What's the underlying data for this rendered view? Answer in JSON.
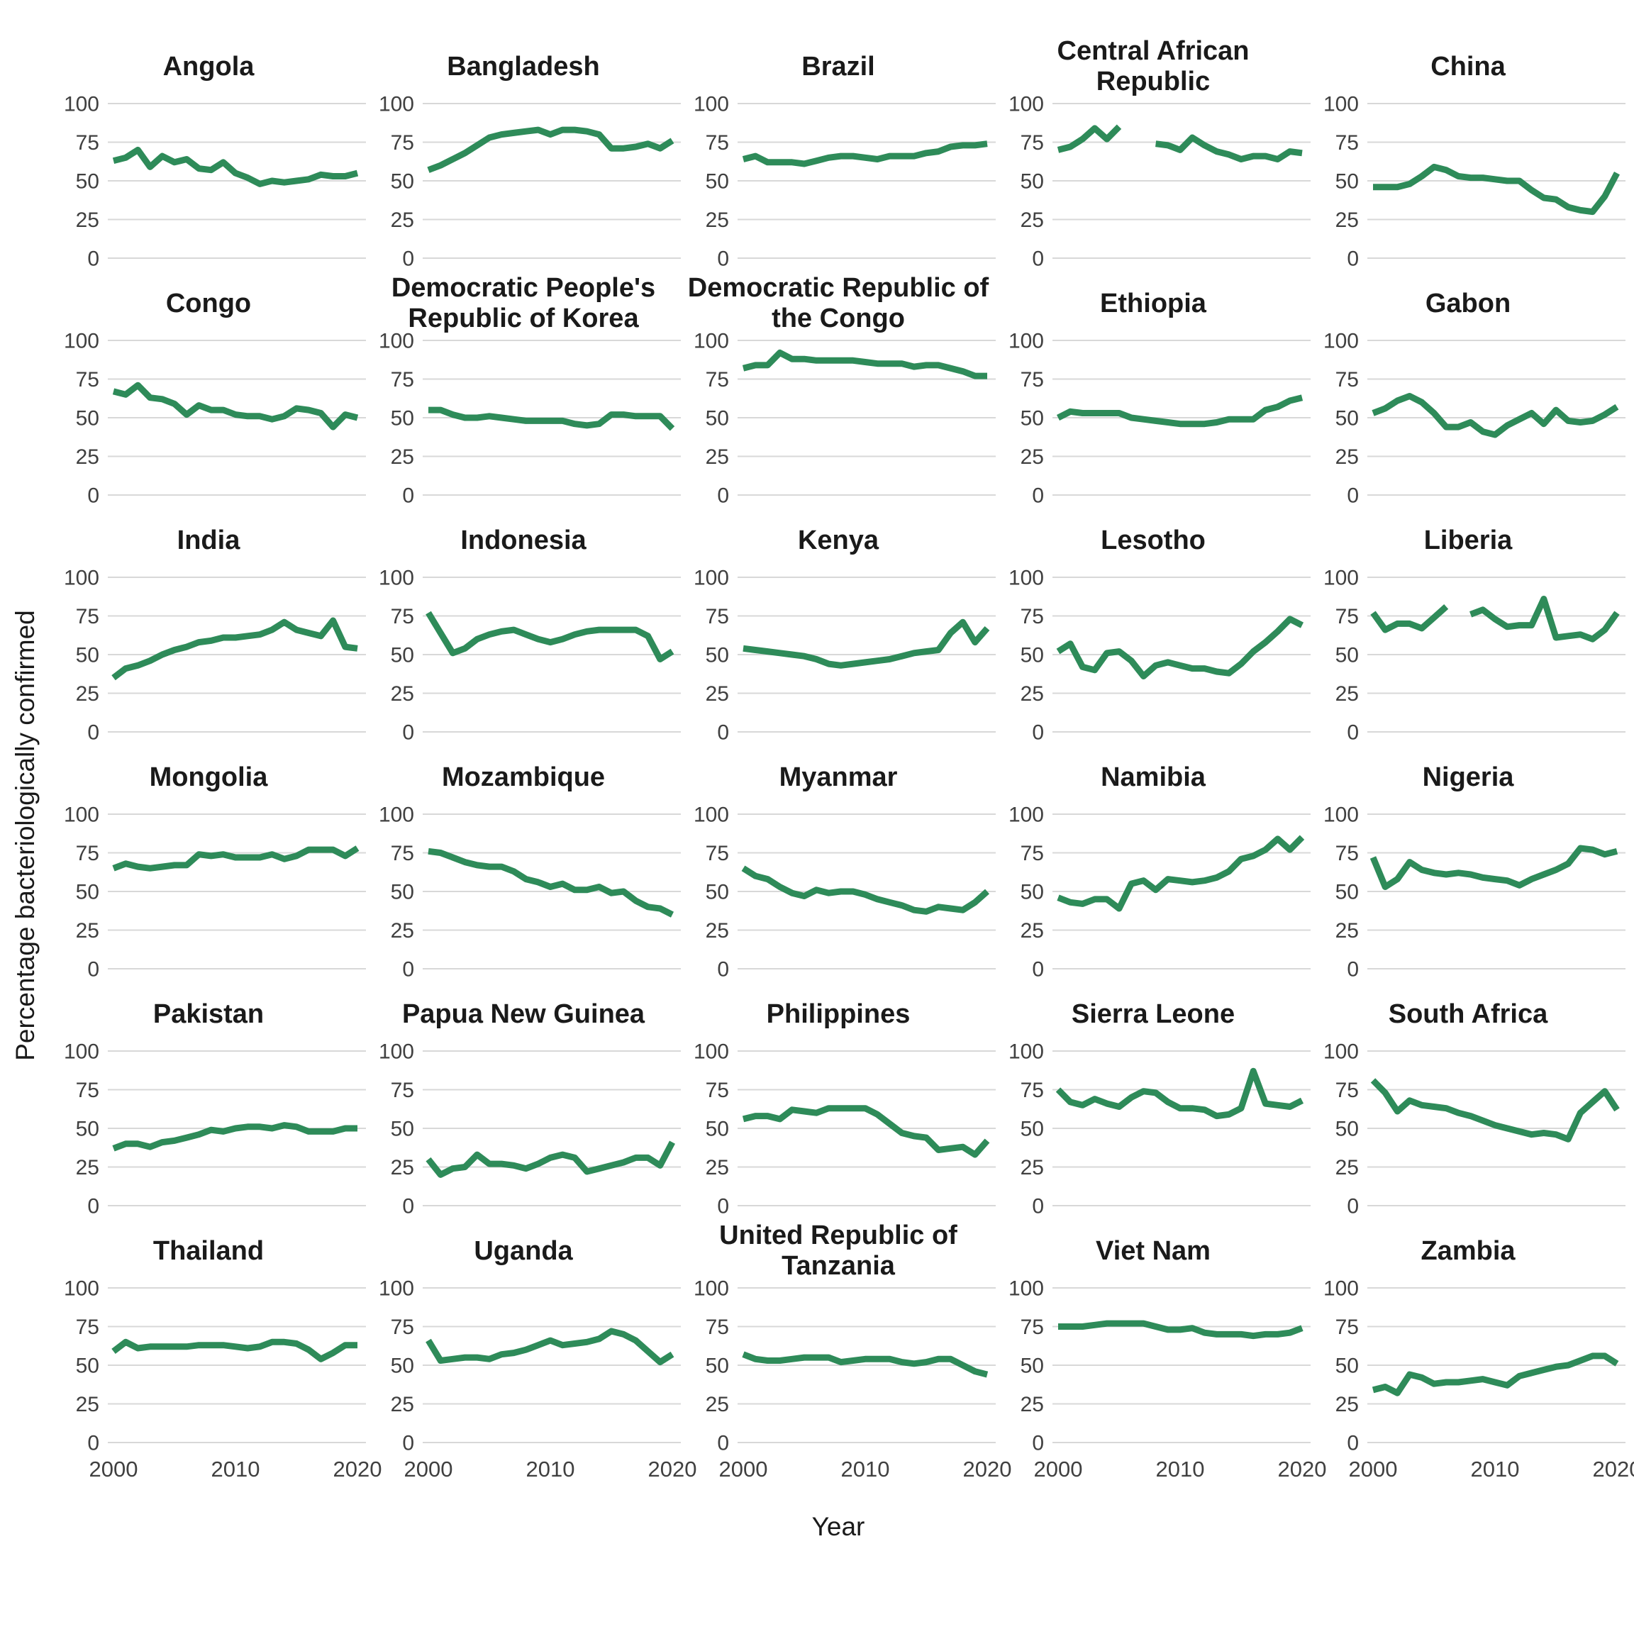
{
  "figure": {
    "background": "#ffffff",
    "description": "Small-multiples line chart, 5 columns x 6 rows, one panel per country"
  },
  "chart_data": {
    "type": "line",
    "title": "",
    "xlabel": "Year",
    "ylabel": "Percentage bacteriologically confirmed",
    "x_start": 2000,
    "x_end": 2020,
    "x_ticks": [
      2000,
      2010,
      2020
    ],
    "y_ticks": [
      0,
      25,
      50,
      75,
      100
    ],
    "ylim": [
      0,
      100
    ],
    "grid": "horizontal gridlines only, shown on bottom-row x labels only",
    "legend_position": "none",
    "facets_per_row": 5,
    "line_color": "#2e8b59",
    "gridline_color": "#d8d8d8",
    "tick_text_color": "#404040",
    "title_text_color": "#1a1a1a",
    "series": [
      {
        "name": "Angola",
        "values": [
          63,
          65,
          70,
          59,
          66,
          62,
          64,
          58,
          57,
          62,
          55,
          52,
          48,
          50,
          49,
          50,
          51,
          54,
          53,
          53,
          55
        ]
      },
      {
        "name": "Bangladesh",
        "values": [
          57,
          60,
          64,
          68,
          73,
          78,
          80,
          81,
          82,
          83,
          80,
          83,
          83,
          82,
          80,
          71,
          71,
          72,
          74,
          71,
          76
        ]
      },
      {
        "name": "Brazil",
        "values": [
          64,
          66,
          62,
          62,
          62,
          61,
          63,
          65,
          66,
          66,
          65,
          64,
          66,
          66,
          66,
          68,
          69,
          72,
          73,
          73,
          74
        ]
      },
      {
        "name": "Central African Republic",
        "values": [
          70,
          72,
          77,
          84,
          77,
          85,
          null,
          null,
          74,
          73,
          70,
          78,
          73,
          69,
          67,
          64,
          66,
          66,
          64,
          69,
          68
        ]
      },
      {
        "name": "China",
        "values": [
          46,
          46,
          46,
          48,
          53,
          59,
          57,
          53,
          52,
          52,
          51,
          50,
          50,
          44,
          39,
          38,
          33,
          31,
          30,
          40,
          55
        ]
      },
      {
        "name": "Congo",
        "values": [
          67,
          65,
          71,
          63,
          62,
          59,
          52,
          58,
          55,
          55,
          52,
          51,
          51,
          49,
          51,
          56,
          55,
          53,
          44,
          52,
          50
        ]
      },
      {
        "name": "Democratic People's Republic of Korea",
        "values": [
          55,
          55,
          52,
          50,
          50,
          51,
          50,
          49,
          48,
          48,
          48,
          48,
          46,
          45,
          46,
          52,
          52,
          51,
          51,
          51,
          43
        ]
      },
      {
        "name": "Democratic Republic of the Congo",
        "values": [
          82,
          84,
          84,
          92,
          88,
          88,
          87,
          87,
          87,
          87,
          86,
          85,
          85,
          85,
          83,
          84,
          84,
          82,
          80,
          77,
          77
        ]
      },
      {
        "name": "Ethiopia",
        "values": [
          50,
          54,
          53,
          53,
          53,
          53,
          50,
          49,
          48,
          47,
          46,
          46,
          46,
          47,
          49,
          49,
          49,
          55,
          57,
          61,
          63
        ]
      },
      {
        "name": "Gabon",
        "values": [
          53,
          56,
          61,
          64,
          60,
          53,
          44,
          44,
          47,
          41,
          39,
          45,
          49,
          53,
          46,
          55,
          48,
          47,
          48,
          52,
          57
        ]
      },
      {
        "name": "India",
        "values": [
          35,
          41,
          43,
          46,
          50,
          53,
          55,
          58,
          59,
          61,
          61,
          62,
          63,
          66,
          71,
          66,
          64,
          62,
          72,
          55,
          54
        ]
      },
      {
        "name": "Indonesia",
        "values": [
          77,
          64,
          51,
          54,
          60,
          63,
          65,
          66,
          63,
          60,
          58,
          60,
          63,
          65,
          66,
          66,
          66,
          66,
          62,
          47,
          52
        ]
      },
      {
        "name": "Kenya",
        "values": [
          54,
          53,
          52,
          51,
          50,
          49,
          47,
          44,
          43,
          44,
          45,
          46,
          47,
          49,
          51,
          52,
          53,
          64,
          71,
          58,
          67
        ]
      },
      {
        "name": "Lesotho",
        "values": [
          52,
          57,
          42,
          40,
          51,
          52,
          46,
          36,
          43,
          45,
          43,
          41,
          41,
          39,
          38,
          44,
          52,
          58,
          65,
          73,
          69
        ]
      },
      {
        "name": "Liberia",
        "values": [
          77,
          66,
          70,
          70,
          67,
          74,
          81,
          null,
          76,
          79,
          73,
          68,
          69,
          69,
          86,
          61,
          62,
          63,
          60,
          66,
          77
        ]
      },
      {
        "name": "Mongolia",
        "values": [
          65,
          68,
          66,
          65,
          66,
          67,
          67,
          74,
          73,
          74,
          72,
          72,
          72,
          74,
          71,
          73,
          77,
          77,
          77,
          73,
          78
        ]
      },
      {
        "name": "Mozambique",
        "values": [
          76,
          75,
          72,
          69,
          67,
          66,
          66,
          63,
          58,
          56,
          53,
          55,
          51,
          51,
          53,
          49,
          50,
          44,
          40,
          39,
          35
        ]
      },
      {
        "name": "Myanmar",
        "values": [
          65,
          60,
          58,
          53,
          49,
          47,
          51,
          49,
          50,
          50,
          48,
          45,
          43,
          41,
          38,
          37,
          40,
          39,
          38,
          43,
          50
        ]
      },
      {
        "name": "Namibia",
        "values": [
          46,
          43,
          42,
          45,
          45,
          39,
          55,
          57,
          51,
          58,
          57,
          56,
          57,
          59,
          63,
          71,
          73,
          77,
          84,
          77,
          85
        ]
      },
      {
        "name": "Nigeria",
        "values": [
          72,
          53,
          58,
          69,
          64,
          62,
          61,
          62,
          61,
          59,
          58,
          57,
          54,
          58,
          61,
          64,
          68,
          78,
          77,
          74,
          76
        ]
      },
      {
        "name": "Pakistan",
        "values": [
          37,
          40,
          40,
          38,
          41,
          42,
          44,
          46,
          49,
          48,
          50,
          51,
          51,
          50,
          52,
          51,
          48,
          48,
          48,
          50,
          50
        ]
      },
      {
        "name": "Papua New Guinea",
        "values": [
          30,
          20,
          24,
          25,
          33,
          27,
          27,
          26,
          24,
          27,
          31,
          33,
          31,
          22,
          24,
          26,
          28,
          31,
          31,
          26,
          41
        ]
      },
      {
        "name": "Philippines",
        "values": [
          56,
          58,
          58,
          56,
          62,
          61,
          60,
          63,
          63,
          63,
          63,
          59,
          53,
          47,
          45,
          44,
          36,
          37,
          38,
          33,
          42
        ]
      },
      {
        "name": "Sierra Leone",
        "values": [
          75,
          67,
          65,
          69,
          66,
          64,
          70,
          74,
          73,
          67,
          63,
          63,
          62,
          58,
          59,
          63,
          87,
          66,
          65,
          64,
          68
        ]
      },
      {
        "name": "South Africa",
        "values": [
          81,
          73,
          61,
          68,
          65,
          64,
          63,
          60,
          58,
          55,
          52,
          50,
          48,
          46,
          47,
          46,
          43,
          60,
          67,
          74,
          62
        ]
      },
      {
        "name": "Thailand",
        "values": [
          59,
          65,
          61,
          62,
          62,
          62,
          62,
          63,
          63,
          63,
          62,
          61,
          62,
          65,
          65,
          64,
          60,
          54,
          58,
          63,
          63
        ]
      },
      {
        "name": "Uganda",
        "values": [
          66,
          53,
          54,
          55,
          55,
          54,
          57,
          58,
          60,
          63,
          66,
          63,
          64,
          65,
          67,
          72,
          70,
          66,
          59,
          52,
          57
        ]
      },
      {
        "name": "United Republic of Tanzania",
        "values": [
          57,
          54,
          53,
          53,
          54,
          55,
          55,
          55,
          52,
          53,
          54,
          54,
          54,
          52,
          51,
          52,
          54,
          54,
          50,
          46,
          44
        ]
      },
      {
        "name": "Viet Nam",
        "values": [
          75,
          75,
          75,
          76,
          77,
          77,
          77,
          77,
          75,
          73,
          73,
          74,
          71,
          70,
          70,
          70,
          69,
          70,
          70,
          71,
          74
        ]
      },
      {
        "name": "Zambia",
        "values": [
          34,
          36,
          32,
          44,
          42,
          38,
          39,
          39,
          40,
          41,
          39,
          37,
          43,
          45,
          47,
          49,
          50,
          53,
          56,
          56,
          51
        ]
      }
    ]
  }
}
